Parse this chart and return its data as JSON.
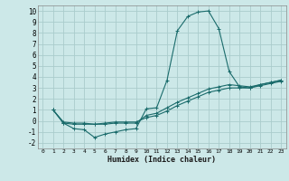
{
  "title": "",
  "xlabel": "Humidex (Indice chaleur)",
  "ylabel": "",
  "xlim": [
    -0.5,
    23.5
  ],
  "ylim": [
    -2.5,
    10.5
  ],
  "xticks": [
    0,
    1,
    2,
    3,
    4,
    5,
    6,
    7,
    8,
    9,
    10,
    11,
    12,
    13,
    14,
    15,
    16,
    17,
    18,
    19,
    20,
    21,
    22,
    23
  ],
  "yticks": [
    -2,
    -1,
    0,
    1,
    2,
    3,
    4,
    5,
    6,
    7,
    8,
    9,
    10
  ],
  "bg_color": "#cce8e8",
  "line_color": "#1a6b6b",
  "grid_color": "#aacccc",
  "series": [
    {
      "x": [
        1,
        2,
        3,
        4,
        5,
        6,
        7,
        8,
        9,
        10,
        11,
        12,
        13,
        14,
        15,
        16,
        17,
        18,
        19,
        20,
        21,
        22,
        23
      ],
      "y": [
        1.0,
        -0.2,
        -0.7,
        -0.8,
        -1.5,
        -1.2,
        -1.0,
        -0.8,
        -0.7,
        1.1,
        1.2,
        3.7,
        8.2,
        9.5,
        9.9,
        10.0,
        8.4,
        4.5,
        3.1,
        3.0,
        3.3,
        3.5,
        3.7
      ]
    },
    {
      "x": [
        1,
        2,
        3,
        4,
        5,
        6,
        7,
        8,
        9,
        10,
        11,
        12,
        13,
        14,
        15,
        16,
        17,
        18,
        19,
        20,
        21,
        22,
        23
      ],
      "y": [
        1.0,
        -0.2,
        -0.3,
        -0.3,
        -0.3,
        -0.3,
        -0.2,
        -0.2,
        -0.2,
        0.5,
        0.7,
        1.2,
        1.7,
        2.1,
        2.5,
        2.9,
        3.1,
        3.3,
        3.2,
        3.1,
        3.3,
        3.5,
        3.7
      ]
    },
    {
      "x": [
        1,
        2,
        3,
        4,
        5,
        6,
        7,
        8,
        9,
        10,
        11,
        12,
        13,
        14,
        15,
        16,
        17,
        18,
        19,
        20,
        21,
        22,
        23
      ],
      "y": [
        1.0,
        -0.1,
        -0.2,
        -0.2,
        -0.3,
        -0.2,
        -0.1,
        -0.1,
        -0.1,
        0.3,
        0.5,
        0.9,
        1.4,
        1.8,
        2.2,
        2.6,
        2.8,
        3.0,
        3.0,
        3.0,
        3.2,
        3.4,
        3.6
      ]
    }
  ]
}
